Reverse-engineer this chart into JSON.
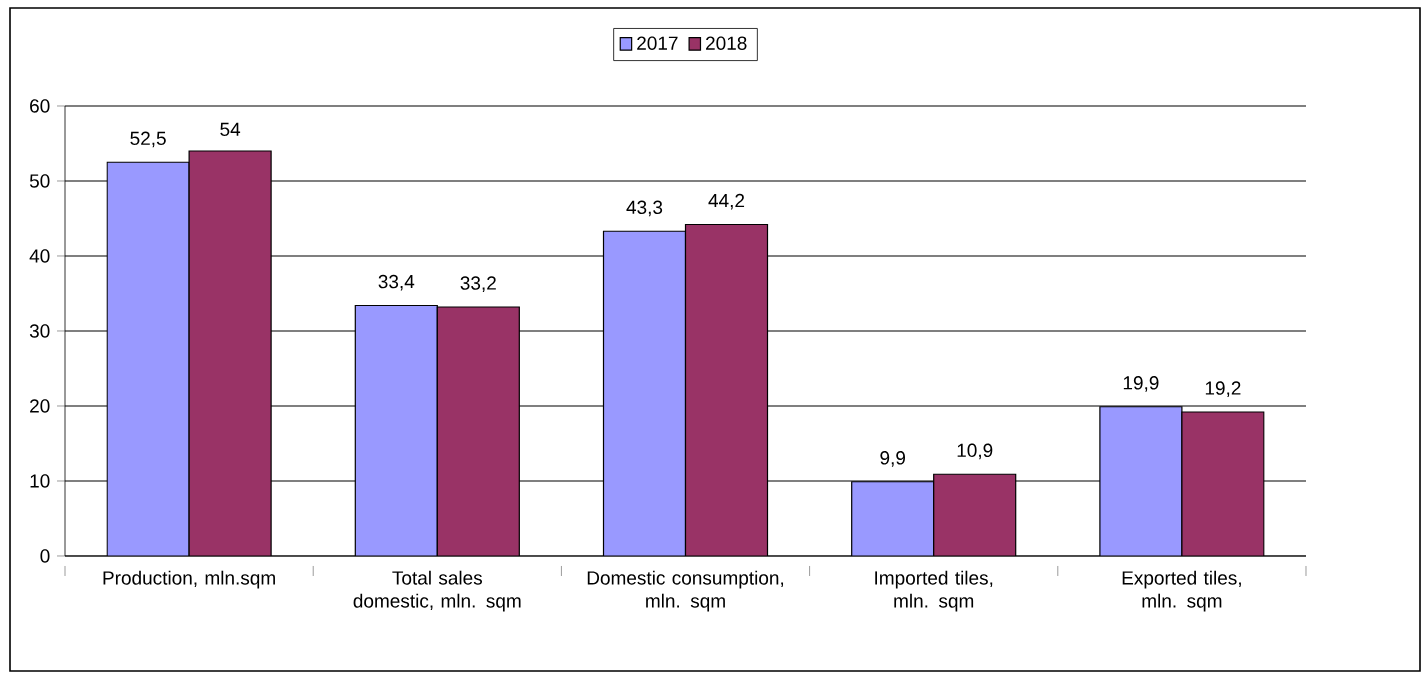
{
  "chart_data": {
    "type": "bar",
    "categories": [
      "Production, mln.sqm",
      "Total sales domestic, mln. sqm",
      "Domestic consumption, mln. sqm",
      "Imported tiles, mln. sqm",
      "Exported tiles, mln. sqm"
    ],
    "series": [
      {
        "name": "2017",
        "color": "#9999ff",
        "values": [
          52.5,
          33.4,
          43.3,
          9.9,
          19.9
        ],
        "value_labels": [
          "52,5",
          "33,4",
          "43,3",
          "9,9",
          "19,9"
        ]
      },
      {
        "name": "2018",
        "color": "#993366",
        "values": [
          54,
          33.2,
          44.2,
          10.9,
          19.2
        ],
        "value_labels": [
          "54",
          "33,2",
          "44,2",
          "10,9",
          "19,2"
        ]
      }
    ],
    "ylim": [
      0,
      60
    ],
    "yticks": [
      0,
      10,
      20,
      30,
      40,
      50,
      60
    ],
    "grid": "y",
    "legend": "top"
  }
}
